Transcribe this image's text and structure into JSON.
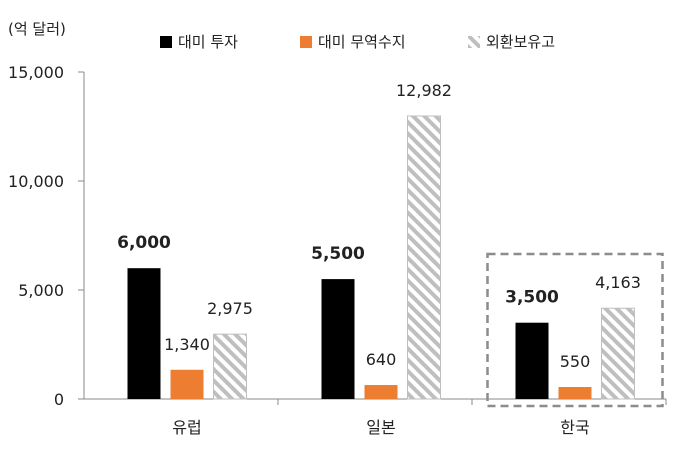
{
  "chart_data": {
    "type": "bar",
    "unit_label": "(억 달러)",
    "categories": [
      "유럽",
      "일본",
      "한국"
    ],
    "series": [
      {
        "name": "대미 투자",
        "values": [
          6000,
          5500,
          3500
        ],
        "color": "#000000"
      },
      {
        "name": "대미 무역수지",
        "values": [
          1340,
          640,
          550
        ],
        "color": "#ED7D31"
      },
      {
        "name": "외환보유고",
        "values": [
          2975,
          12982,
          4163
        ],
        "color": "#BFBFBF",
        "pattern": "diagonal-stripes"
      }
    ],
    "data_labels": [
      [
        "6,000",
        "5,500",
        "3,500"
      ],
      [
        "1,340",
        "640",
        "550"
      ],
      [
        "2,975",
        "12,982",
        "4,163"
      ]
    ],
    "yticks": [
      0,
      5000,
      10000,
      15000
    ],
    "ytick_labels": [
      "0",
      "5,000",
      "10,000",
      "15,000"
    ],
    "ylim": [
      0,
      15000
    ],
    "grid": false,
    "legend_position": "top",
    "highlight_category": "한국",
    "highlight_color": "#8C8C8C"
  }
}
